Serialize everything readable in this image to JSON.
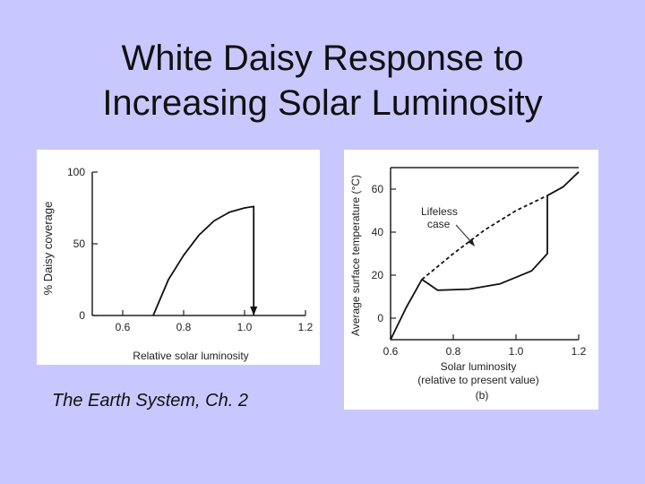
{
  "slide": {
    "title_line1": "White Daisy Response to",
    "title_line2": "Increasing Solar Luminosity",
    "source": "The Earth System, Ch. 2"
  },
  "chart_data": [
    {
      "type": "line",
      "title": "",
      "xlabel": "Relative solar luminosity",
      "ylabel": "% Daisy coverage",
      "xlim": [
        0.5,
        1.2
      ],
      "ylim": [
        0,
        100
      ],
      "x_ticks": [
        "0.6",
        "0.8",
        "1.0",
        "1.2"
      ],
      "y_ticks": [
        "0",
        "50",
        "100"
      ],
      "series": [
        {
          "style": "solid",
          "x": [
            0.7,
            0.75,
            0.8,
            0.85,
            0.9,
            0.95,
            1.0,
            1.03,
            1.03
          ],
          "y": [
            0,
            25,
            42,
            56,
            66,
            72,
            75,
            76,
            0
          ]
        }
      ],
      "annotations": [
        "arrow pointing down at x=1.03"
      ]
    },
    {
      "type": "line",
      "title": "",
      "xlabel_line1": "Solar luminosity",
      "xlabel_line2": "(relative to present value)",
      "ylabel": "Average surface temperature (°C)",
      "panel_label": "(b)",
      "xlim": [
        0.6,
        1.2
      ],
      "ylim": [
        -10,
        70
      ],
      "x_ticks": [
        "0.6",
        "0.8",
        "1.0",
        "1.2"
      ],
      "y_ticks": [
        "0",
        "20",
        "40",
        "60"
      ],
      "series": [
        {
          "style": "solid",
          "x": [
            0.6,
            0.65,
            0.7,
            0.75,
            0.85,
            0.95,
            1.05,
            1.1,
            1.1,
            1.15,
            1.2
          ],
          "y": [
            -10,
            5,
            18,
            13,
            13.5,
            16,
            22,
            30,
            57,
            61,
            68
          ]
        },
        {
          "style": "dashed",
          "x": [
            0.7,
            0.8,
            0.9,
            1.0,
            1.1
          ],
          "y": [
            18,
            30,
            41,
            50,
            57
          ]
        }
      ],
      "annotation": {
        "text_line1": "Lifeless",
        "text_line2": "case"
      }
    }
  ]
}
